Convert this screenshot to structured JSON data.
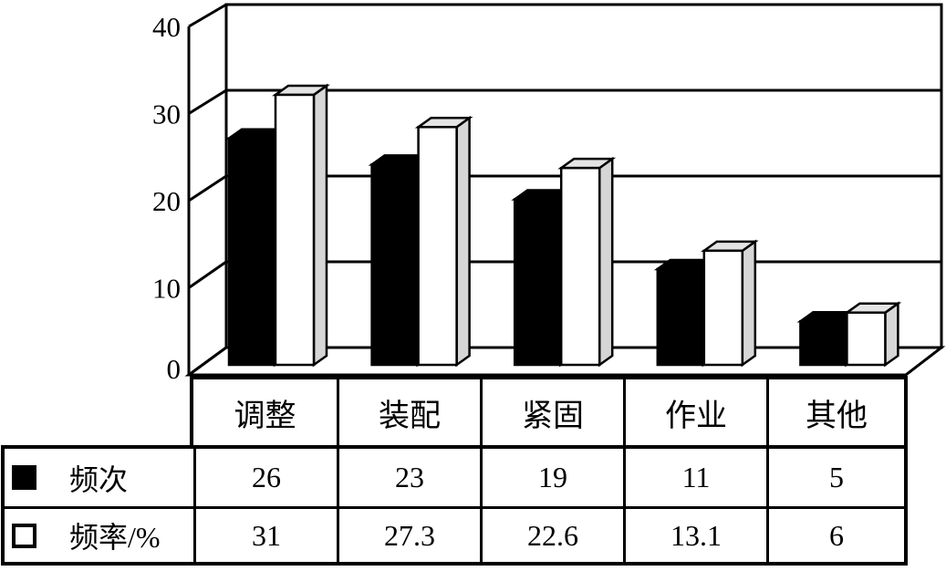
{
  "chart_data": {
    "type": "bar",
    "style": "3d-column",
    "title": "",
    "categories": [
      "调整",
      "装配",
      "紧固",
      "作业",
      "其他"
    ],
    "series": [
      {
        "name": "频次",
        "values": [
          26,
          23,
          19,
          11,
          5
        ],
        "fill": "#000000"
      },
      {
        "name": "频率/%",
        "values": [
          31,
          27.3,
          22.6,
          13.1,
          6
        ],
        "fill": "#ffffff"
      }
    ],
    "xlabel": "",
    "ylabel": "",
    "ylim": [
      0,
      40
    ],
    "yticks": [
      0,
      10,
      20,
      30,
      40
    ],
    "grid": true,
    "legend_position": "table-rows-left"
  },
  "table": {
    "column_headers": [
      "调整",
      "装配",
      "紧固",
      "作业",
      "其他"
    ],
    "rows": [
      {
        "label": "频次",
        "swatch": "black-filled-square",
        "values": [
          "26",
          "23",
          "19",
          "11",
          "5"
        ]
      },
      {
        "label": "频率/%",
        "swatch": "white-outlined-square",
        "values": [
          "31",
          "27.3",
          "22.6",
          "13.1",
          "6"
        ]
      }
    ]
  },
  "colors": {
    "line": "#000000",
    "background": "#ffffff",
    "bar_black": "#000000",
    "bar_white": "#ffffff",
    "bar_top_face": "#e4e4e4",
    "bar_side_face": "#d6d6d6"
  }
}
